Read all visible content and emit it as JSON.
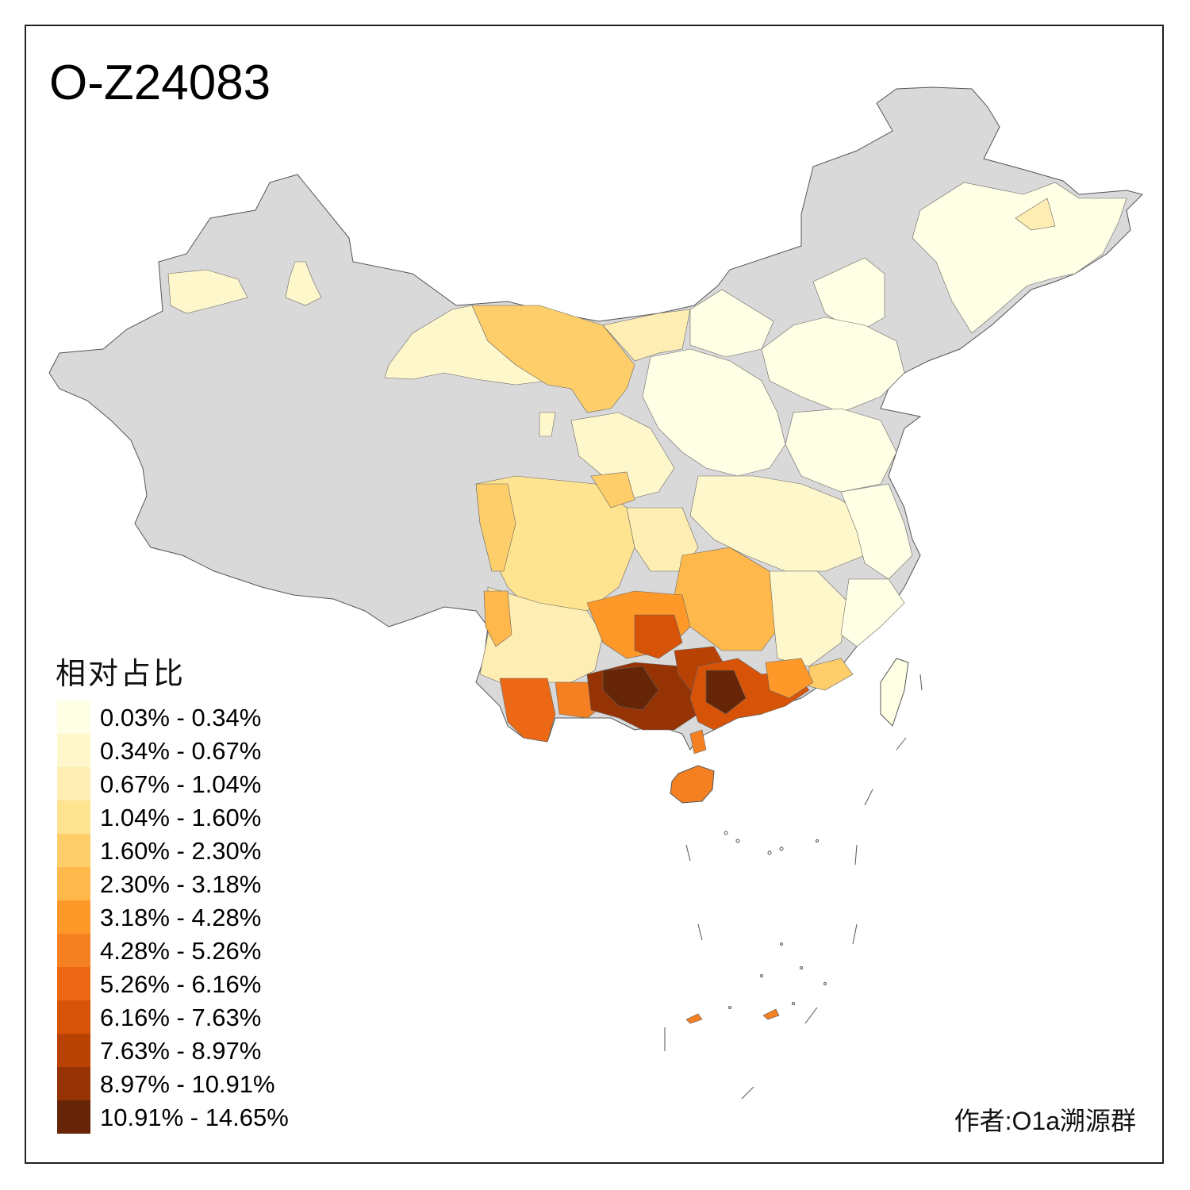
{
  "title": "O-Z24083",
  "legend": {
    "title": "相对占比",
    "items": [
      {
        "label": "0.03% - 0.34%",
        "color": "#ffffe5"
      },
      {
        "label": "0.34% - 0.67%",
        "color": "#fff7cc"
      },
      {
        "label": "0.67% - 1.04%",
        "color": "#ffeeb3"
      },
      {
        "label": "1.04% - 1.60%",
        "color": "#fee391"
      },
      {
        "label": "1.60% - 2.30%",
        "color": "#fece6a"
      },
      {
        "label": "2.30% - 3.18%",
        "color": "#feb84c"
      },
      {
        "label": "3.18% - 4.28%",
        "color": "#fe9929"
      },
      {
        "label": "4.28% - 5.26%",
        "color": "#f58022"
      },
      {
        "label": "5.26% - 6.16%",
        "color": "#ec6814"
      },
      {
        "label": "6.16% - 7.63%",
        "color": "#d65307"
      },
      {
        "label": "7.63% - 8.97%",
        "color": "#b84204"
      },
      {
        "label": "8.97% - 10.91%",
        "color": "#953305"
      },
      {
        "label": "10.91% - 14.65%",
        "color": "#662506"
      }
    ]
  },
  "no_data_color": "#d9d9d9",
  "author": "作者:O1a溯源群"
}
